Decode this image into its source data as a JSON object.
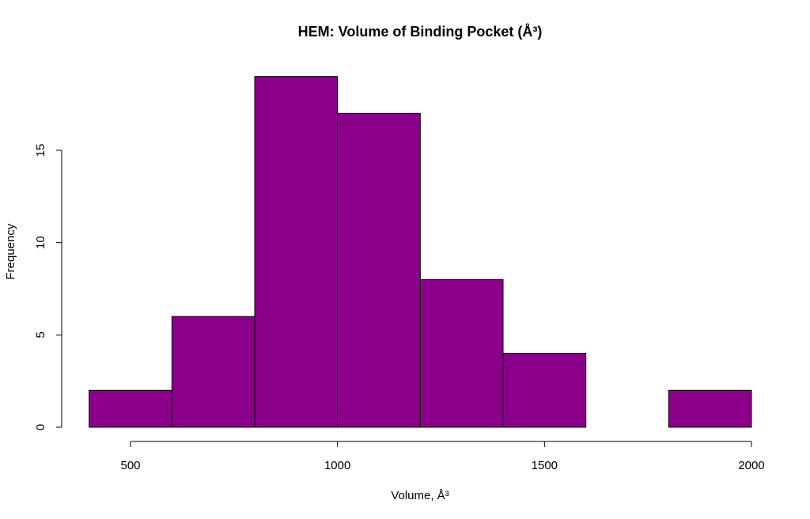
{
  "chart_data": {
    "type": "bar",
    "title": "HEM: Volume of Binding Pocket (Å³)",
    "xlabel": "Volume, Å³",
    "ylabel": "Frequency",
    "bin_edges": [
      400,
      600,
      800,
      1000,
      1200,
      1400,
      1600,
      1800,
      2000
    ],
    "values": [
      2,
      6,
      19,
      17,
      8,
      4,
      0,
      2
    ],
    "xlim": [
      400,
      2000
    ],
    "ylim": [
      0,
      19
    ],
    "x_ticks": [
      500,
      1000,
      1500,
      2000
    ],
    "x_tick_labels": [
      "500",
      "1000",
      "1500",
      "2000"
    ],
    "y_ticks": [
      0,
      5,
      10,
      15
    ],
    "y_tick_labels": [
      "0",
      "5",
      "10",
      "15"
    ],
    "grid": false,
    "bar_color": "#8b008b",
    "bar_border_color": "#000000"
  }
}
